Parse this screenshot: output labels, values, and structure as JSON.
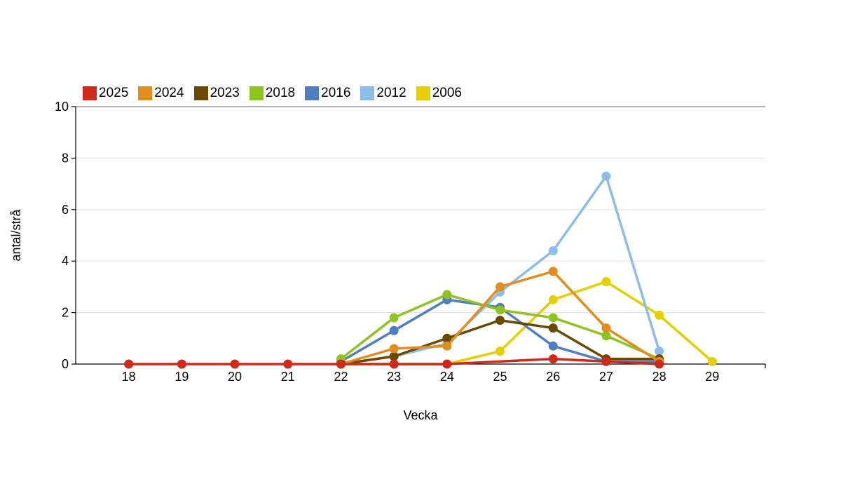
{
  "chart_data": {
    "type": "line",
    "title": "",
    "xlabel": "Vecka",
    "ylabel": "antal/strå",
    "xlim": [
      17,
      30
    ],
    "ylim": [
      0,
      10
    ],
    "x_ticks": [
      18,
      19,
      20,
      21,
      22,
      23,
      24,
      25,
      26,
      27,
      28,
      29
    ],
    "y_ticks": [
      0,
      2,
      4,
      6,
      8,
      10
    ],
    "grid": "horizontal",
    "legend_position": "top-left",
    "series": [
      {
        "name": "2006",
        "color": "#e6cf00",
        "x": [
          22,
          23,
          24,
          25,
          26,
          27,
          28,
          29
        ],
        "values": [
          0,
          0,
          0,
          0.5,
          2.5,
          3.2,
          1.9,
          0.1
        ]
      },
      {
        "name": "2012",
        "color": "#8cbde9",
        "x": [
          22,
          23,
          24,
          25,
          26,
          27,
          28
        ],
        "values": [
          0,
          0.3,
          0.8,
          2.8,
          4.4,
          7.3,
          0.5
        ]
      },
      {
        "name": "2016",
        "color": "#4f7fbf",
        "x": [
          22,
          23,
          24,
          25,
          26,
          27,
          28
        ],
        "values": [
          0.1,
          1.3,
          2.5,
          2.2,
          0.7,
          0.1,
          0.1
        ]
      },
      {
        "name": "2018",
        "color": "#8fc31f",
        "x": [
          22,
          23,
          24,
          25,
          26,
          27,
          28
        ],
        "values": [
          0.2,
          1.8,
          2.7,
          2.1,
          1.8,
          1.1,
          0.2
        ]
      },
      {
        "name": "2023",
        "color": "#6b4a00",
        "x": [
          22,
          23,
          24,
          25,
          26,
          27,
          28
        ],
        "values": [
          0,
          0.3,
          1.0,
          1.7,
          1.4,
          0.2,
          0.2
        ]
      },
      {
        "name": "2024",
        "color": "#e08e1f",
        "x": [
          22,
          23,
          24,
          25,
          26,
          27,
          28
        ],
        "values": [
          0,
          0.6,
          0.7,
          3.0,
          3.6,
          1.4,
          0.1
        ]
      },
      {
        "name": "2025",
        "color": "#d0281a",
        "x": [
          18,
          19,
          20,
          21,
          22,
          23,
          24,
          26,
          27,
          28
        ],
        "values": [
          0,
          0,
          0,
          0,
          0,
          0,
          0,
          0.2,
          0.1,
          0
        ]
      }
    ],
    "legend_order": [
      "2025",
      "2024",
      "2023",
      "2018",
      "2016",
      "2012",
      "2006"
    ]
  }
}
